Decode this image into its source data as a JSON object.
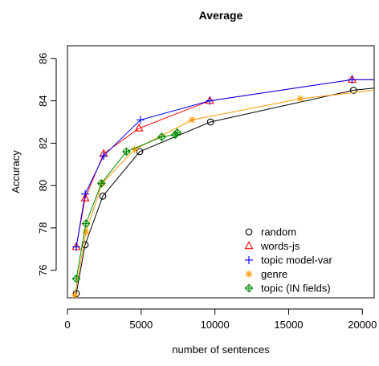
{
  "chart_data": {
    "type": "line",
    "title": "Average",
    "xlabel": "number of sentences",
    "ylabel": "Accuracy",
    "xlim": [
      0,
      20800
    ],
    "ylim": [
      74.7,
      86.6
    ],
    "xticks": [
      0,
      5000,
      10000,
      15000,
      20000
    ],
    "yticks": [
      76,
      78,
      80,
      82,
      84,
      86
    ],
    "grid": false,
    "legend_position": "bottom-right",
    "series": [
      {
        "name": "random",
        "marker": "circle",
        "color": "#000000",
        "points": [
          [
            600,
            74.9
          ],
          [
            1200,
            77.2
          ],
          [
            2400,
            79.5
          ],
          [
            4900,
            81.6
          ],
          [
            9700,
            83.0
          ],
          [
            19400,
            84.5
          ],
          [
            20800,
            84.6
          ]
        ]
      },
      {
        "name": "words-js",
        "marker": "triangle",
        "color": "#ff0000",
        "points": [
          [
            600,
            77.1
          ],
          [
            1200,
            79.4
          ],
          [
            2450,
            81.5
          ],
          [
            4850,
            82.7
          ],
          [
            9650,
            84.0
          ],
          [
            19300,
            85.0
          ],
          [
            20800,
            85.0
          ]
        ]
      },
      {
        "name": "topic model-var",
        "marker": "plus",
        "color": "#0000ff",
        "points": [
          [
            600,
            77.1
          ],
          [
            1200,
            79.6
          ],
          [
            2450,
            81.4
          ],
          [
            4950,
            83.1
          ],
          [
            9650,
            84.0
          ],
          [
            19300,
            85.0
          ],
          [
            20800,
            85.0
          ]
        ]
      },
      {
        "name": "genre",
        "marker": "asterisk",
        "color": "#ff9900",
        "points": [
          [
            500,
            74.8
          ],
          [
            1250,
            77.8
          ],
          [
            2350,
            80.1
          ],
          [
            4550,
            81.7
          ],
          [
            8450,
            83.1
          ],
          [
            15800,
            84.1
          ],
          [
            20800,
            84.5
          ]
        ]
      },
      {
        "name": "topic (IN fields)",
        "marker": "diamond",
        "color": "#008800",
        "points": [
          [
            600,
            75.6
          ],
          [
            1250,
            78.2
          ],
          [
            2300,
            80.1
          ],
          [
            4000,
            81.6
          ],
          [
            6400,
            82.3
          ],
          [
            7300,
            82.4
          ],
          [
            7450,
            82.5
          ]
        ]
      }
    ]
  }
}
